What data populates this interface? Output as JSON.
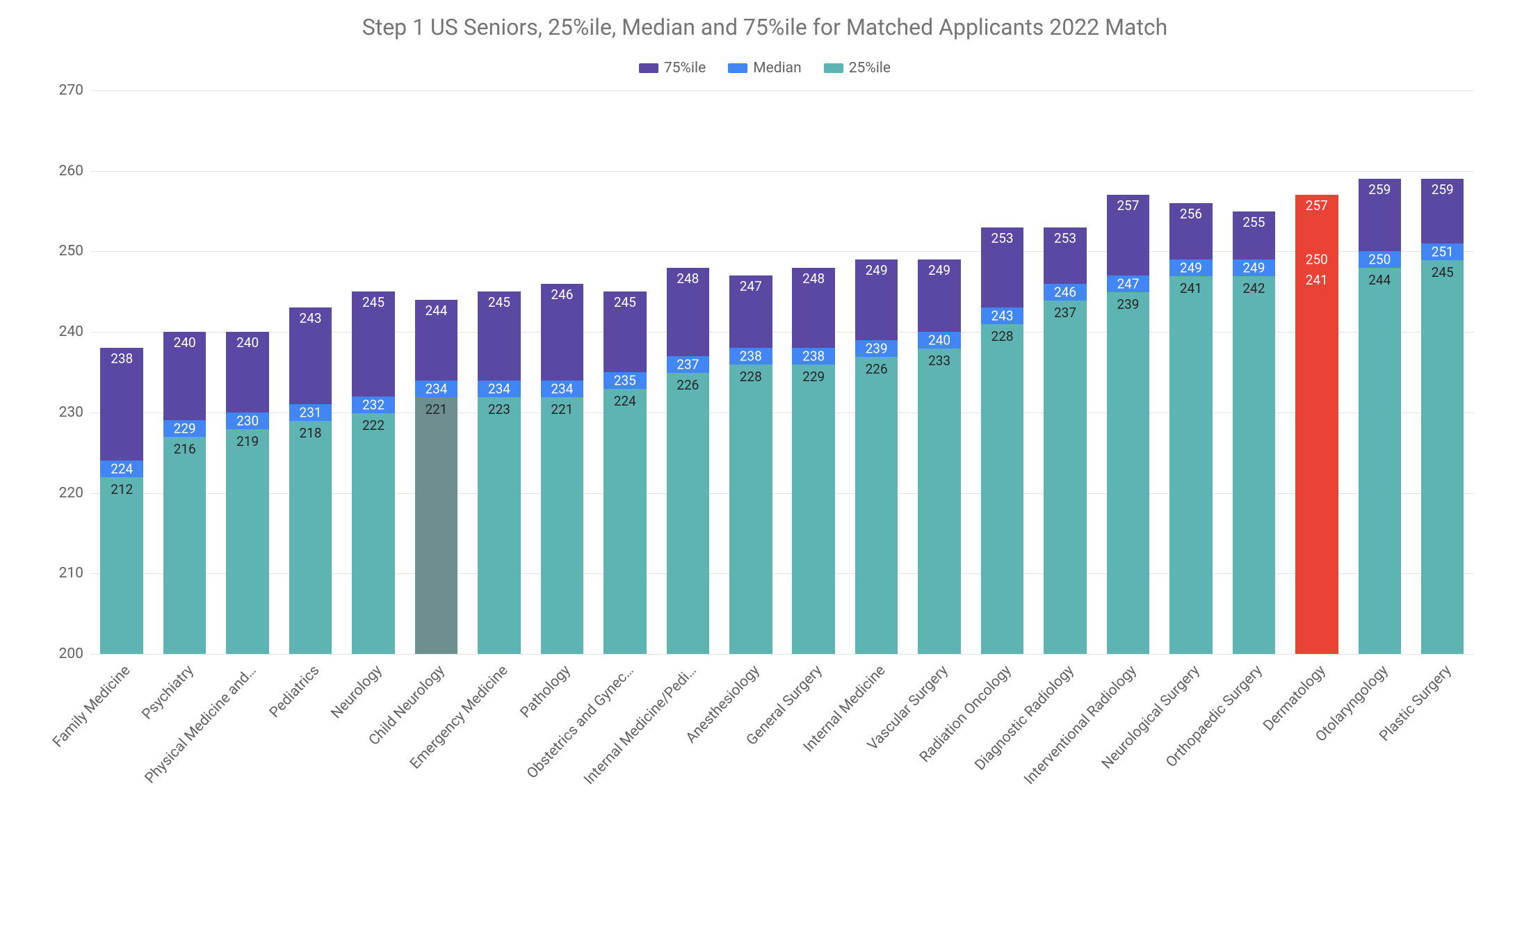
{
  "chart": {
    "type": "bar",
    "title": "Step 1 US Seniors, 25%ile, Median and 75%ile for Matched Applicants 2022 Match",
    "title_fontsize": 32,
    "title_color": "#757575",
    "background_color": "#ffffff",
    "grid_color": "#e3e3e3",
    "axis_label_color": "#616161",
    "axis_label_fontsize": 21,
    "ylim": [
      200,
      270
    ],
    "yticks": [
      200,
      210,
      220,
      230,
      240,
      250,
      260,
      270
    ],
    "bar_width_ratio": 0.68,
    "legend": [
      {
        "label": "75%ile",
        "color": "#5a48a3"
      },
      {
        "label": "Median",
        "color": "#4285f4"
      },
      {
        "label": "25%ile",
        "color": "#5eb3b3"
      }
    ],
    "colors": {
      "p75_default": "#5a48a3",
      "median_default": "#4285f4",
      "p25_default": "#5eb3b3",
      "highlight_p75": "#ea4335",
      "highlight_median": "#ea4335",
      "highlight_p25": "#ea4335",
      "muted_p25": "#6e8f8f",
      "label_inside_light": "#ffffff",
      "label_inside_dark": "#262626"
    },
    "categories": [
      {
        "name": "Family Medicine",
        "p25": 212,
        "median": 224,
        "p75": 238
      },
      {
        "name": "Psychiatry",
        "p25": 216,
        "median": 229,
        "p75": 240
      },
      {
        "name": "Physical Medicine and…",
        "p25": 219,
        "median": 230,
        "p75": 240
      },
      {
        "name": "Pediatrics",
        "p25": 218,
        "median": 231,
        "p75": 243
      },
      {
        "name": "Neurology",
        "p25": 222,
        "median": 232,
        "p75": 245
      },
      {
        "name": "Child Neurology",
        "p25": 221,
        "median": 234,
        "p75": 244,
        "p25_color": "#6e8f8f"
      },
      {
        "name": "Emergency Medicine",
        "p25": 223,
        "median": 234,
        "p75": 245
      },
      {
        "name": "Pathology",
        "p25": 221,
        "median": 234,
        "p75": 246
      },
      {
        "name": "Obstetrics and Gynec…",
        "p25": 224,
        "median": 235,
        "p75": 245
      },
      {
        "name": "Internal Medicine/Pedi…",
        "p25": 226,
        "median": 237,
        "p75": 248
      },
      {
        "name": "Anesthesiology",
        "p25": 228,
        "median": 238,
        "p75": 247
      },
      {
        "name": "General Surgery",
        "p25": 229,
        "median": 238,
        "p75": 248
      },
      {
        "name": "Internal Medicine",
        "p25": 226,
        "median": 239,
        "p75": 249
      },
      {
        "name": "Vascular Surgery",
        "p25": 233,
        "median": 240,
        "p75": 249
      },
      {
        "name": "Radiation Oncology",
        "p25": 228,
        "median": 243,
        "p75": 253
      },
      {
        "name": "Diagnostic Radiology",
        "p25": 237,
        "median": 246,
        "p75": 253
      },
      {
        "name": "Interventional Radiology",
        "p25": 239,
        "median": 247,
        "p75": 257
      },
      {
        "name": "Neurological Surgery",
        "p25": 241,
        "median": 249,
        "p75": 256
      },
      {
        "name": "Orthopaedic Surgery",
        "p25": 242,
        "median": 249,
        "p75": 255
      },
      {
        "name": "Dermatology",
        "p25": 241,
        "median": 250,
        "p75": 257,
        "p75_color": "#ea4335",
        "median_color": "#ea4335",
        "p25_color": "#ea4335",
        "p25_label_color": "#ffffff"
      },
      {
        "name": "Otolaryngology",
        "p25": 244,
        "median": 250,
        "p75": 259
      },
      {
        "name": "Plastic Surgery",
        "p25": 245,
        "median": 251,
        "p75": 259
      }
    ]
  }
}
